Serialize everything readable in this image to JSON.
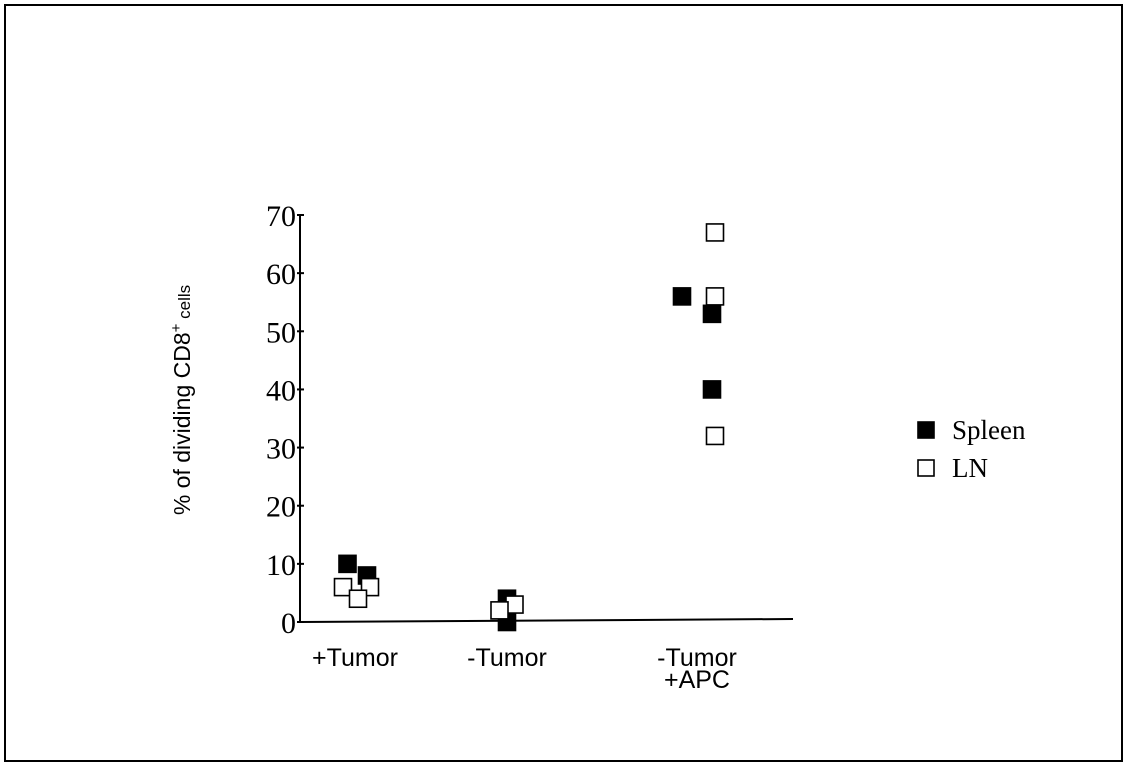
{
  "chart_data": {
    "type": "scatter",
    "title": "",
    "ylabel": "% of dividing CD8",
    "ylabel_sup": "+",
    "ylabel_suffix": " cells",
    "ylim": [
      0,
      70
    ],
    "yticks": [
      "0",
      "10",
      "20",
      "30",
      "40",
      "50",
      "60",
      "70"
    ],
    "categories": [
      {
        "lines": [
          "+Tumor"
        ]
      },
      {
        "lines": [
          "-Tumor"
        ]
      },
      {
        "lines": [
          "-Tumor",
          "+APC"
        ]
      }
    ],
    "series": [
      {
        "name": "Spleen",
        "marker": "filled-square",
        "color": "#000000",
        "points": [
          {
            "category": 0,
            "offset": -0.05,
            "y": 10
          },
          {
            "category": 0,
            "offset": 0.08,
            "y": 8
          },
          {
            "category": 1,
            "offset": 0.0,
            "y": 4
          },
          {
            "category": 1,
            "offset": 0.0,
            "y": 0
          },
          {
            "category": 2,
            "offset": -0.1,
            "y": 56
          },
          {
            "category": 2,
            "offset": 0.1,
            "y": 53
          },
          {
            "category": 2,
            "offset": 0.1,
            "y": 40
          }
        ]
      },
      {
        "name": "LN",
        "marker": "open-square",
        "color": "#000000",
        "points": [
          {
            "category": 0,
            "offset": -0.08,
            "y": 6
          },
          {
            "category": 0,
            "offset": 0.1,
            "y": 6
          },
          {
            "category": 0,
            "offset": 0.02,
            "y": 4
          },
          {
            "category": 1,
            "offset": 0.05,
            "y": 3
          },
          {
            "category": 1,
            "offset": -0.05,
            "y": 2
          },
          {
            "category": 2,
            "offset": 0.12,
            "y": 67
          },
          {
            "category": 2,
            "offset": 0.12,
            "y": 56
          },
          {
            "category": 2,
            "offset": 0.12,
            "y": 32
          }
        ]
      }
    ],
    "legend": {
      "position": "right",
      "items": [
        "Spleen",
        "LN"
      ]
    },
    "grid": false
  }
}
